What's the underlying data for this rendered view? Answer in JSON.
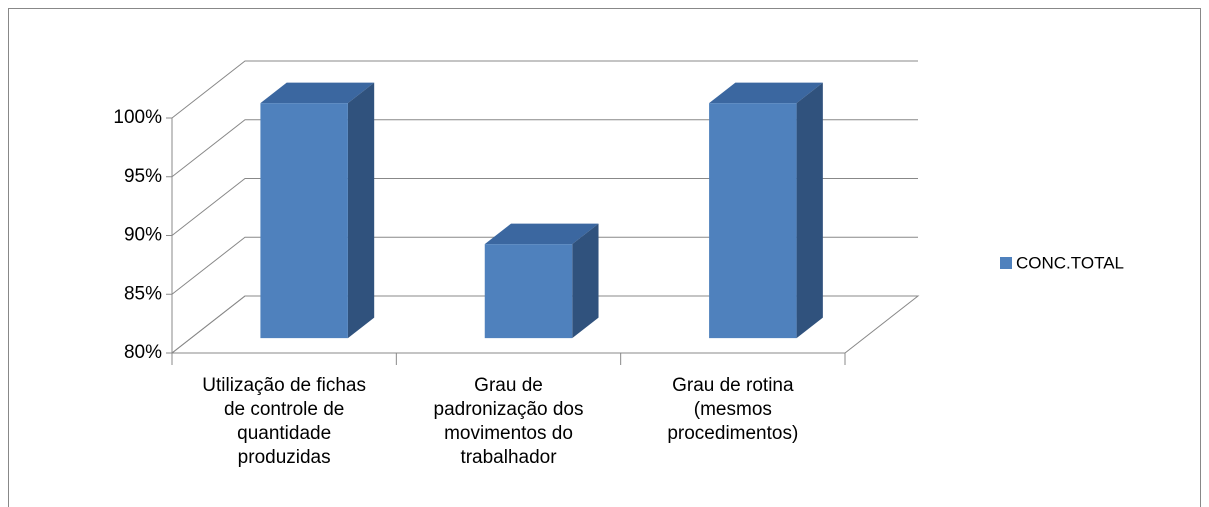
{
  "chart_data": {
    "type": "bar3d",
    "categories": [
      "Utilização de fichas de controle de quantidade produzidas",
      "Grau de padronização dos movimentos do trabalhador",
      "Grau de rotina (mesmos procedimentos)"
    ],
    "series": [
      {
        "name": "CONC.TOTAL",
        "color": "#4f81bd",
        "values": [
          100,
          88,
          100
        ]
      }
    ],
    "ylim": [
      80,
      100
    ],
    "yticks": [
      {
        "value": 80,
        "label": "80%"
      },
      {
        "value": 85,
        "label": "85%"
      },
      {
        "value": 90,
        "label": "90%"
      },
      {
        "value": 95,
        "label": "95%"
      },
      {
        "value": 100,
        "label": "100%"
      }
    ],
    "grid": true,
    "legend": "right"
  }
}
